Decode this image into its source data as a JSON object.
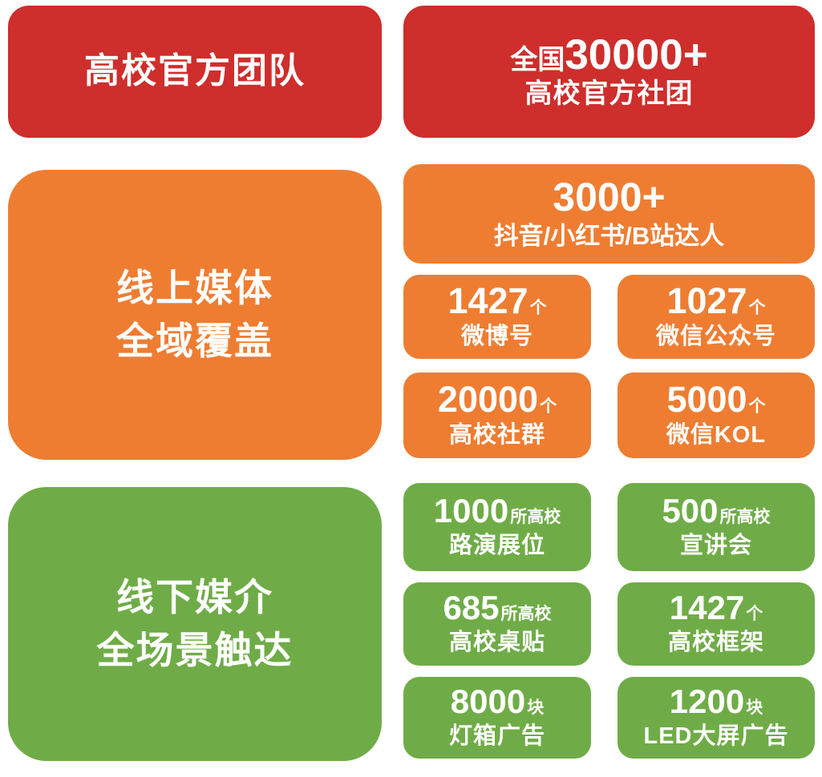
{
  "colors": {
    "red": "#CE2E2C",
    "orange": "#EE7D32",
    "green": "#6FAC47",
    "text": "#FFFFFF",
    "background": "#FFFFFF"
  },
  "official_section": {
    "left_title": "高校官方团队",
    "stat": {
      "prefix": "全国",
      "number": "30000+",
      "label": "高校官方社团"
    }
  },
  "online_section": {
    "title_line1": "线上媒体",
    "title_line2": "全域覆盖",
    "hero": {
      "number": "3000+",
      "label": "抖音/小红书/B站达人"
    },
    "cards": [
      {
        "number": "1427",
        "unit": "个",
        "label": "微博号"
      },
      {
        "number": "1027",
        "unit": "个",
        "label": "微信公众号"
      },
      {
        "number": "20000",
        "unit": "个",
        "label": "高校社群"
      },
      {
        "number": "5000",
        "unit": "个",
        "label": "微信KOL"
      }
    ]
  },
  "offline_section": {
    "title_line1": "线下媒介",
    "title_line2": "全场景触达",
    "cards": [
      {
        "number": "1000",
        "unit": "所高校",
        "label": "路演展位"
      },
      {
        "number": "500",
        "unit": "所高校",
        "label": "宣讲会"
      },
      {
        "number": "685",
        "unit": "所高校",
        "label": "高校桌贴"
      },
      {
        "number": "1427",
        "unit": "个",
        "label": "高校框架"
      },
      {
        "number": "8000",
        "unit": "块",
        "label": "灯箱广告"
      },
      {
        "number": "1200",
        "unit": "块",
        "label": "LED大屏广告"
      }
    ]
  }
}
